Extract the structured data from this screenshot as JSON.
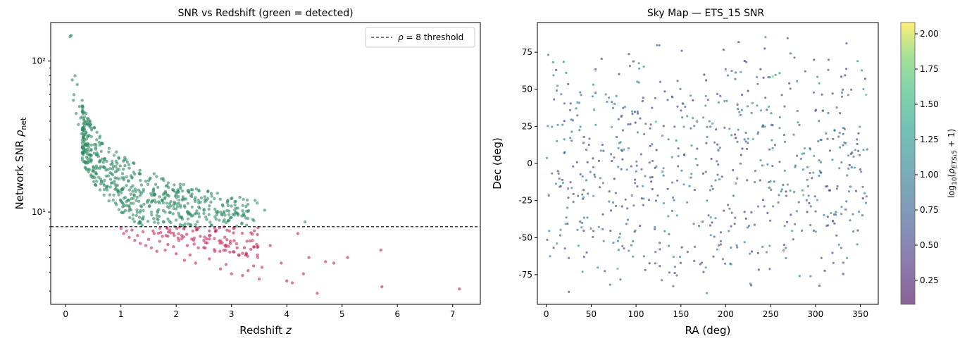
{
  "chart_data": [
    {
      "type": "scatter",
      "title": "SNR vs Redshift  (green = detected)",
      "xlabel": "Redshift z",
      "ylabel": "Network SNR ρnet",
      "xlim": [
        -0.27,
        7.5
      ],
      "ylim": [
        2.45,
        180
      ],
      "yscale": "log",
      "xticks": [
        0,
        1,
        2,
        3,
        4,
        5,
        6,
        7
      ],
      "yticks": [
        {
          "value": 10,
          "label": "10¹"
        },
        {
          "value": 100,
          "label": "10²"
        }
      ],
      "threshold": {
        "value": 8,
        "label": "ρ = 8 threshold",
        "style": "dashed",
        "color": "#000000"
      },
      "legend": {
        "position": "top-right"
      },
      "colors": {
        "detected": "#2e8b62",
        "undetected": "#c2285a"
      },
      "series": [
        {
          "status": "detected",
          "x": [
            0.08,
            0.1,
            0.12,
            0.14,
            0.15,
            0.17,
            0.19,
            0.21,
            0.23,
            0.25,
            0.27,
            0.29,
            0.3,
            0.32,
            0.34,
            0.36,
            0.37,
            0.39,
            0.41,
            0.43,
            0.45,
            0.47,
            0.5,
            0.52,
            0.55,
            0.58,
            0.6,
            0.62,
            0.65,
            0.68,
            0.7,
            0.73,
            0.75,
            0.78,
            0.8,
            0.83,
            0.86,
            0.88,
            0.9,
            0.93,
            0.96,
            1.0,
            1.03,
            1.06,
            1.1,
            1.13,
            1.16,
            1.2,
            1.24,
            1.28,
            1.32,
            1.36,
            1.4,
            1.45,
            1.5,
            1.55,
            1.6,
            1.65,
            1.7,
            1.75,
            1.8,
            1.85,
            1.9,
            1.95,
            2.0,
            2.05,
            2.1,
            2.15,
            2.2,
            2.3,
            2.4,
            2.5,
            2.6,
            2.7,
            2.8,
            2.9,
            3.0,
            3.1,
            3.2,
            3.3,
            3.6,
            4.33
          ],
          "y": [
            145,
            148,
            75,
            55,
            60,
            80,
            45,
            70,
            38,
            50,
            42,
            33,
            55,
            36,
            30,
            28,
            45,
            26,
            32,
            24,
            22,
            35,
            20,
            28,
            18,
            24,
            17,
            22,
            16,
            20,
            15,
            19,
            14,
            25,
            13,
            18,
            12,
            16,
            11.5,
            21,
            13,
            14,
            18,
            11,
            15,
            12,
            10.5,
            17,
            13,
            9.5,
            14,
            11,
            9,
            16,
            12,
            10,
            13,
            9.5,
            11.5,
            12,
            10,
            9,
            11,
            14,
            10.5,
            12,
            9.2,
            11,
            10,
            9.5,
            12,
            9.8,
            11,
            9.3,
            10,
            8.5,
            9.2,
            9.8,
            10.2,
            10.1,
            10.3,
            8.6
          ]
        },
        {
          "status": "undetected",
          "x": [
            1.0,
            1.05,
            1.1,
            1.15,
            1.2,
            1.25,
            1.3,
            1.35,
            1.4,
            1.45,
            1.5,
            1.55,
            1.6,
            1.65,
            1.7,
            1.75,
            1.8,
            1.85,
            1.9,
            1.95,
            2.0,
            2.05,
            2.1,
            2.15,
            2.2,
            2.25,
            2.3,
            2.35,
            2.4,
            2.5,
            2.6,
            2.7,
            2.8,
            2.9,
            3.0,
            3.1,
            3.2,
            3.3,
            3.4,
            3.5,
            3.55,
            3.7,
            3.9,
            4.0,
            4.1,
            4.2,
            4.3,
            4.4,
            4.55,
            4.7,
            4.85,
            5.1,
            5.7,
            5.72,
            7.12
          ],
          "y": [
            7.8,
            7.2,
            7.5,
            6.8,
            7.6,
            6.5,
            7.0,
            6.2,
            7.4,
            6.0,
            6.6,
            5.8,
            7.2,
            5.5,
            6.4,
            6.9,
            5.6,
            6.1,
            7.3,
            5.9,
            5.3,
            6.5,
            7.0,
            4.8,
            6.0,
            5.2,
            7.5,
            4.6,
            5.8,
            6.5,
            4.9,
            5.5,
            4.2,
            4.5,
            3.9,
            5.8,
            3.8,
            4.1,
            4.4,
            3.6,
            4.3,
            6.0,
            4.6,
            3.5,
            3.4,
            7.2,
            3.9,
            5.0,
            2.9,
            4.7,
            4.6,
            5.0,
            5.6,
            3.2,
            3.1
          ]
        }
      ]
    },
    {
      "type": "scatter",
      "title": "Sky Map — ETS_15 SNR",
      "xlabel": "RA (deg)",
      "ylabel": "Dec (deg)",
      "xlim": [
        -10,
        370
      ],
      "ylim": [
        -95,
        95
      ],
      "xticks": [
        0,
        50,
        100,
        150,
        200,
        250,
        300,
        350
      ],
      "yticks": [
        -75,
        -50,
        -25,
        0,
        25,
        50,
        75
      ],
      "colorbar": {
        "label": "log₁₀(ρETS₁5 + 1)",
        "range": [
          0.08,
          2.08
        ],
        "ticks": [
          "0.25",
          "0.50",
          "0.75",
          "1.00",
          "1.25",
          "1.50",
          "1.75",
          "2.00"
        ],
        "colormap": "viridis"
      },
      "point_count": 700
    }
  ]
}
